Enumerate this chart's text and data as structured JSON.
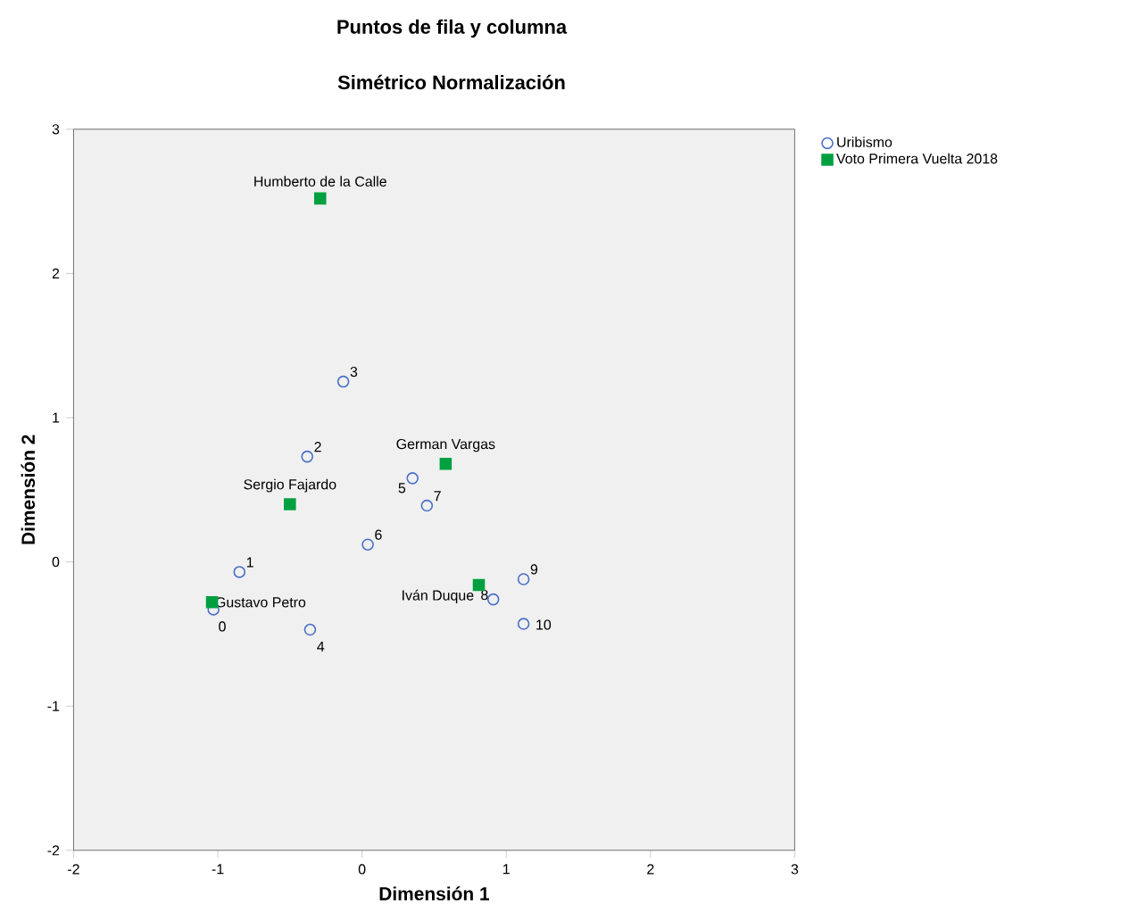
{
  "chart_data": {
    "type": "scatter",
    "title": "Puntos de fila y columna",
    "subtitle": "Simétrico Normalización",
    "xlabel": "Dimensión 1",
    "ylabel": "Dimensión 2",
    "xlim": [
      -2,
      3
    ],
    "ylim": [
      -2,
      3
    ],
    "xticks": [
      -2,
      -1,
      0,
      1,
      2,
      3
    ],
    "yticks": [
      -2,
      -1,
      0,
      1,
      2,
      3
    ],
    "grid": false,
    "legend": "top right",
    "series": [
      {
        "name": "Uribismo",
        "color": "#4a6fc8",
        "marker": "circle",
        "x": [
          -1.03,
          -0.85,
          -0.38,
          -0.13,
          -0.36,
          0.35,
          0.04,
          0.45,
          0.91,
          1.12,
          1.12
        ],
        "values": [
          -0.33,
          -0.07,
          0.73,
          1.25,
          -0.47,
          0.58,
          0.12,
          0.39,
          -0.26,
          -0.12,
          -0.43
        ]
      },
      {
        "name": "Voto Primera Vuelta 2018",
        "color": "#00a040",
        "marker": "square",
        "x": [
          -0.29,
          0.58,
          -0.5,
          -1.04,
          0.81
        ],
        "values": [
          2.52,
          0.68,
          0.4,
          -0.28,
          -0.16
        ]
      }
    ],
    "annotations": [
      {
        "text": "0",
        "x": -1.03,
        "y": -0.33
      },
      {
        "text": "1",
        "x": -0.85,
        "y": -0.07
      },
      {
        "text": "2",
        "x": -0.38,
        "y": 0.73
      },
      {
        "text": "3",
        "x": -0.13,
        "y": 1.25
      },
      {
        "text": "4",
        "x": -0.36,
        "y": -0.47
      },
      {
        "text": "5",
        "x": 0.35,
        "y": 0.58
      },
      {
        "text": "6",
        "x": 0.04,
        "y": 0.12
      },
      {
        "text": "7",
        "x": 0.45,
        "y": 0.39
      },
      {
        "text": "8",
        "x": 0.91,
        "y": -0.26
      },
      {
        "text": "9",
        "x": 1.12,
        "y": -0.12
      },
      {
        "text": "10",
        "x": 1.12,
        "y": -0.43
      },
      {
        "text": "Humberto de la Calle",
        "x": -0.29,
        "y": 2.52
      },
      {
        "text": "German Vargas",
        "x": 0.58,
        "y": 0.68
      },
      {
        "text": "Sergio Fajardo",
        "x": -0.5,
        "y": 0.4
      },
      {
        "text": "Gustavo Petro",
        "x": -1.04,
        "y": -0.28
      },
      {
        "text": "Iván Duque",
        "x": 0.81,
        "y": -0.16
      }
    ]
  }
}
